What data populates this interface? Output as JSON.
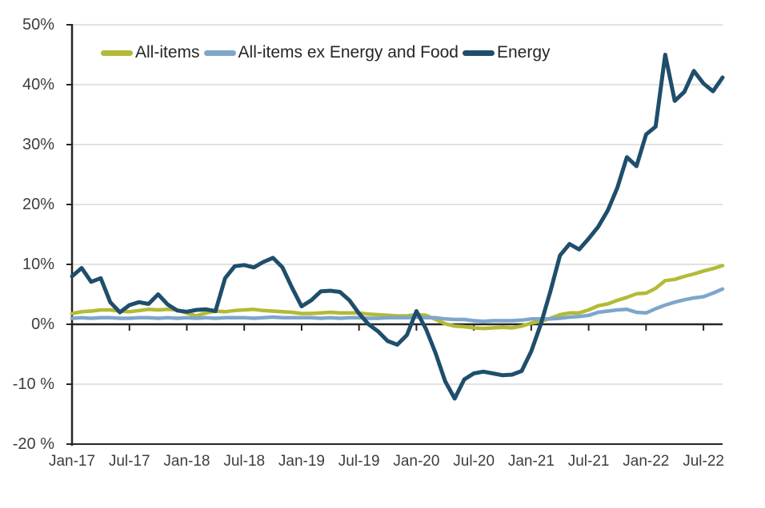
{
  "chart_data": {
    "type": "line",
    "title": "",
    "xlabel": "",
    "ylabel": "",
    "ylim": [
      -20,
      50
    ],
    "grid": true,
    "legend_position": "top",
    "grid_color": "#d9d9d9",
    "axis_color": "#262626",
    "label_color": "#3d3d3d",
    "background_color": "#ffffff",
    "y_ticks": [
      {
        "value": 50,
        "label": "50%"
      },
      {
        "value": 40,
        "label": "40%"
      },
      {
        "value": 30,
        "label": "30%"
      },
      {
        "value": 20,
        "label": "20%"
      },
      {
        "value": 10,
        "label": "10%"
      },
      {
        "value": 0,
        "label": "0%"
      },
      {
        "value": -10,
        "label": "-10 %"
      },
      {
        "value": -20,
        "label": "-20 %"
      }
    ],
    "x_ticks": [
      {
        "month_index": 0,
        "label": "Jan-17"
      },
      {
        "month_index": 6,
        "label": "Jul-17"
      },
      {
        "month_index": 12,
        "label": "Jan-18"
      },
      {
        "month_index": 18,
        "label": "Jul-18"
      },
      {
        "month_index": 24,
        "label": "Jan-19"
      },
      {
        "month_index": 30,
        "label": "Jul-19"
      },
      {
        "month_index": 36,
        "label": "Jan-20"
      },
      {
        "month_index": 42,
        "label": "Jul-20"
      },
      {
        "month_index": 48,
        "label": "Jan-21"
      },
      {
        "month_index": 54,
        "label": "Jul-21"
      },
      {
        "month_index": 60,
        "label": "Jan-22"
      },
      {
        "month_index": 66,
        "label": "Jul-22"
      }
    ],
    "x_months": [
      "Jan-17",
      "Feb-17",
      "Mar-17",
      "Apr-17",
      "May-17",
      "Jun-17",
      "Jul-17",
      "Aug-17",
      "Sep-17",
      "Oct-17",
      "Nov-17",
      "Dec-17",
      "Jan-18",
      "Feb-18",
      "Mar-18",
      "Apr-18",
      "May-18",
      "Jun-18",
      "Jul-18",
      "Aug-18",
      "Sep-18",
      "Oct-18",
      "Nov-18",
      "Dec-18",
      "Jan-19",
      "Feb-19",
      "Mar-19",
      "Apr-19",
      "May-19",
      "Jun-19",
      "Jul-19",
      "Aug-19",
      "Sep-19",
      "Oct-19",
      "Nov-19",
      "Dec-19",
      "Jan-20",
      "Feb-20",
      "Mar-20",
      "Apr-20",
      "May-20",
      "Jun-20",
      "Jul-20",
      "Aug-20",
      "Sep-20",
      "Oct-20",
      "Nov-20",
      "Dec-20",
      "Jan-21",
      "Feb-21",
      "Mar-21",
      "Apr-21",
      "May-21",
      "Jun-21",
      "Jul-21",
      "Aug-21",
      "Sep-21",
      "Oct-21",
      "Nov-21",
      "Dec-21",
      "Jan-22",
      "Feb-22",
      "Mar-22",
      "Apr-22",
      "May-22",
      "Jun-22",
      "Jul-22",
      "Aug-22",
      "Sep-22"
    ],
    "series": [
      {
        "name": "All-items",
        "color": "#b3ba36",
        "stroke_width": 4.5,
        "values": [
          1.8,
          2.1,
          2.2,
          2.4,
          2.4,
          2.2,
          2.1,
          2.3,
          2.5,
          2.4,
          2.5,
          2.4,
          1.9,
          1.4,
          1.9,
          2.2,
          2.1,
          2.3,
          2.4,
          2.5,
          2.3,
          2.2,
          2.1,
          2.0,
          1.8,
          1.8,
          1.9,
          2.0,
          1.9,
          1.9,
          1.9,
          1.7,
          1.6,
          1.5,
          1.4,
          1.4,
          1.6,
          1.5,
          0.8,
          0.1,
          -0.3,
          -0.4,
          -0.6,
          -0.7,
          -0.6,
          -0.5,
          -0.6,
          -0.3,
          0.2,
          0.5,
          1.0,
          1.6,
          1.9,
          1.9,
          2.4,
          3.1,
          3.4,
          4.0,
          4.5,
          5.1,
          5.2,
          6.0,
          7.3,
          7.5,
          8.0,
          8.4,
          8.9,
          9.3,
          9.8
        ]
      },
      {
        "name": "All-items ex Energy and Food",
        "color": "#7ea6cb",
        "stroke_width": 4.5,
        "values": [
          1.0,
          1.1,
          1.0,
          1.1,
          1.1,
          1.0,
          1.0,
          1.1,
          1.1,
          1.0,
          1.1,
          1.0,
          1.1,
          1.0,
          1.1,
          1.0,
          1.1,
          1.1,
          1.1,
          1.0,
          1.1,
          1.2,
          1.1,
          1.1,
          1.1,
          1.1,
          1.0,
          1.1,
          1.0,
          1.1,
          1.1,
          1.0,
          1.0,
          1.1,
          1.1,
          1.1,
          1.2,
          1.1,
          1.1,
          0.9,
          0.8,
          0.8,
          0.6,
          0.5,
          0.6,
          0.6,
          0.6,
          0.7,
          0.9,
          0.9,
          0.9,
          1.0,
          1.2,
          1.3,
          1.5,
          2.0,
          2.2,
          2.4,
          2.5,
          2.0,
          1.9,
          2.6,
          3.2,
          3.7,
          4.1,
          4.4,
          4.6,
          5.2,
          5.9
        ]
      },
      {
        "name": "Energy",
        "color": "#1f4e6c",
        "stroke_width": 5,
        "values": [
          8.0,
          9.4,
          7.1,
          7.7,
          3.7,
          2.0,
          3.2,
          3.7,
          3.4,
          5.0,
          3.3,
          2.3,
          2.1,
          2.4,
          2.5,
          2.2,
          7.7,
          9.7,
          9.9,
          9.5,
          10.4,
          11.1,
          9.5,
          6.1,
          3.0,
          4.0,
          5.5,
          5.6,
          5.4,
          4.0,
          1.8,
          0.0,
          -1.2,
          -2.8,
          -3.4,
          -1.8,
          2.2,
          -0.8,
          -4.8,
          -9.5,
          -12.4,
          -9.2,
          -8.2,
          -7.9,
          -8.2,
          -8.5,
          -8.4,
          -7.8,
          -4.5,
          0.0,
          5.5,
          11.5,
          13.4,
          12.5,
          14.3,
          16.3,
          19.0,
          22.8,
          27.9,
          26.4,
          31.7,
          33.0,
          45.0,
          37.3,
          38.8,
          42.3,
          40.2,
          38.9,
          41.2
        ]
      }
    ]
  }
}
